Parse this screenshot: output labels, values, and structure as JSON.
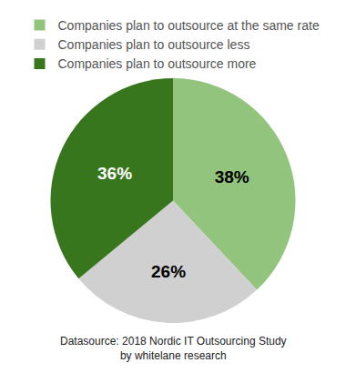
{
  "chart_data": {
    "type": "pie",
    "categories": [
      "Companies plan to outsource at the same rate",
      "Companies plan to outsource less",
      "Companies plan to outsource more"
    ],
    "values": [
      38,
      26,
      36
    ],
    "value_labels": [
      "38%",
      "26%",
      "36%"
    ],
    "colors": [
      "#93c47d",
      "#d0d0d0",
      "#38761d"
    ],
    "data_labels": true,
    "legend": "top",
    "annotations": [
      "Datasource: 2018 Nordic IT Outsourcing Study",
      "by whitelane research"
    ]
  }
}
